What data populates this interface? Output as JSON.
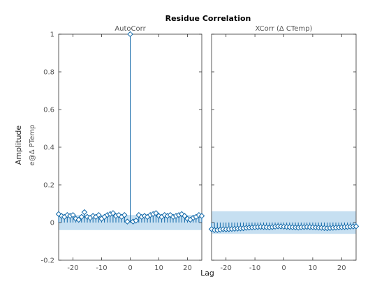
{
  "figure": {
    "title": "Residue Correlation",
    "ylabel": "Amplitude",
    "ylabel_sub": "e@Δ PTemp",
    "xlabel": "Lag"
  },
  "colors": {
    "stem": "#0f67a8",
    "confidence": "#c6dff1"
  },
  "chart_data": [
    {
      "type": "stem",
      "title": "AutoCorr",
      "xlim": [
        -25,
        25
      ],
      "ylim": [
        -0.2,
        1
      ],
      "xticks": [
        -20,
        -10,
        0,
        10,
        20
      ],
      "yticks": [
        -0.2,
        0,
        0.2,
        0.4,
        0.6,
        0.8,
        1
      ],
      "ytick_labels": [
        "-0.2",
        "0",
        "0.2",
        "0.4",
        "0.6",
        "0.8",
        "1"
      ],
      "confidence_band": [
        -0.04,
        0.04
      ],
      "x": [
        -25,
        -24,
        -23,
        -22,
        -21,
        -20,
        -19,
        -18,
        -17,
        -16,
        -15,
        -14,
        -13,
        -12,
        -11,
        -10,
        -9,
        -8,
        -7,
        -6,
        -5,
        -4,
        -3,
        -2,
        -1,
        0,
        1,
        2,
        3,
        4,
        5,
        6,
        7,
        8,
        9,
        10,
        11,
        12,
        13,
        14,
        15,
        16,
        17,
        18,
        19,
        20,
        21,
        22,
        23,
        24,
        25
      ],
      "values": [
        0.045,
        0.035,
        0.03,
        0.04,
        0.035,
        0.04,
        0.02,
        0.015,
        0.03,
        0.055,
        0.03,
        0.025,
        0.035,
        0.03,
        0.04,
        0.02,
        0.03,
        0.04,
        0.045,
        0.05,
        0.035,
        0.04,
        0.03,
        0.04,
        0.005,
        1,
        0.005,
        0.01,
        0.04,
        0.03,
        0.035,
        0.03,
        0.04,
        0.045,
        0.05,
        0.035,
        0.03,
        0.04,
        0.035,
        0.04,
        0.03,
        0.035,
        0.04,
        0.045,
        0.035,
        0.02,
        0.015,
        0.025,
        0.03,
        0.04,
        0.035
      ]
    },
    {
      "type": "stem",
      "title": "XCorr (Δ CTemp)",
      "xlim": [
        -25,
        25
      ],
      "ylim": [
        -0.2,
        1
      ],
      "xticks": [
        -20,
        -10,
        0,
        10,
        20
      ],
      "yticks": [
        -0.2,
        0,
        0.2,
        0.4,
        0.6,
        0.8,
        1
      ],
      "ytick_labels": [],
      "confidence_band": [
        -0.06,
        0.06
      ],
      "x": [
        -25,
        -24,
        -23,
        -22,
        -21,
        -20,
        -19,
        -18,
        -17,
        -16,
        -15,
        -14,
        -13,
        -12,
        -11,
        -10,
        -9,
        -8,
        -7,
        -6,
        -5,
        -4,
        -3,
        -2,
        -1,
        0,
        1,
        2,
        3,
        4,
        5,
        6,
        7,
        8,
        9,
        10,
        11,
        12,
        13,
        14,
        15,
        16,
        17,
        18,
        19,
        20,
        21,
        22,
        23,
        24,
        25
      ],
      "values": [
        -0.035,
        -0.04,
        -0.04,
        -0.038,
        -0.035,
        -0.036,
        -0.035,
        -0.034,
        -0.033,
        -0.032,
        -0.031,
        -0.03,
        -0.028,
        -0.027,
        -0.026,
        -0.025,
        -0.024,
        -0.023,
        -0.024,
        -0.025,
        -0.026,
        -0.024,
        -0.022,
        -0.02,
        -0.021,
        -0.022,
        -0.023,
        -0.024,
        -0.025,
        -0.026,
        -0.027,
        -0.025,
        -0.024,
        -0.023,
        -0.024,
        -0.025,
        -0.026,
        -0.027,
        -0.028,
        -0.029,
        -0.03,
        -0.029,
        -0.028,
        -0.027,
        -0.026,
        -0.025,
        -0.024,
        -0.023,
        -0.022,
        -0.021,
        -0.02
      ]
    }
  ]
}
